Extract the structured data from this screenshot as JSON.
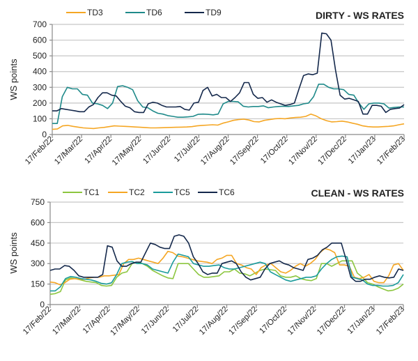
{
  "chart_data": [
    {
      "type": "line",
      "title": "DIRTY - WS RATES",
      "xlabel": "",
      "ylabel": "WS points",
      "ylim": [
        0,
        700
      ],
      "yticks": [
        0,
        100,
        200,
        300,
        400,
        500,
        600,
        700
      ],
      "grid": true,
      "legend_position": "top",
      "x_tick_labels": [
        "17/Feb/22",
        "17/Mar/22",
        "17/Apr/22",
        "17/May/22",
        "17/Jun/22",
        "17/Jul/22",
        "17/Aug/22",
        "17/Sep/22",
        "17/Oct/22",
        "17/Nov/22",
        "17/Dec/22",
        "17/Jan/23",
        "17/Feb/23"
      ],
      "x_unit": "weeks since 17/Feb/22",
      "series": [
        {
          "name": "TD3",
          "color": "#f5a623",
          "values": [
            33,
            35,
            55,
            58,
            52,
            47,
            42,
            40,
            38,
            42,
            45,
            50,
            55,
            53,
            52,
            50,
            48,
            46,
            44,
            42,
            42,
            43,
            44,
            45,
            46,
            47,
            48,
            50,
            55,
            58,
            60,
            62,
            60,
            72,
            80,
            90,
            95,
            98,
            92,
            82,
            80,
            90,
            95,
            100,
            102,
            100,
            105,
            108,
            110,
            115,
            130,
            118,
            100,
            88,
            80,
            82,
            85,
            80,
            72,
            65,
            55,
            50,
            48,
            48,
            50,
            52,
            55,
            62,
            68
          ]
        },
        {
          "name": "TD6",
          "color": "#1f8a8a",
          "values": [
            70,
            70,
            240,
            300,
            290,
            290,
            255,
            250,
            200,
            195,
            185,
            165,
            200,
            305,
            310,
            300,
            285,
            215,
            175,
            170,
            150,
            135,
            130,
            120,
            115,
            110,
            110,
            112,
            115,
            128,
            130,
            128,
            125,
            130,
            195,
            210,
            210,
            208,
            180,
            175,
            178,
            178,
            182,
            170,
            175,
            178,
            180,
            178,
            182,
            185,
            195,
            200,
            240,
            320,
            320,
            300,
            290,
            290,
            285,
            255,
            250,
            200,
            160,
            195,
            200,
            200,
            195,
            168,
            172,
            175,
            175
          ]
        },
        {
          "name": "TD9",
          "color": "#14284b",
          "values": [
            150,
            150,
            165,
            160,
            155,
            150,
            145,
            145,
            175,
            190,
            235,
            265,
            265,
            250,
            245,
            210,
            180,
            170,
            145,
            140,
            140,
            195,
            205,
            200,
            185,
            175,
            175,
            175,
            178,
            160,
            155,
            200,
            205,
            280,
            300,
            245,
            255,
            235,
            235,
            210,
            235,
            265,
            330,
            330,
            255,
            230,
            235,
            205,
            220,
            205,
            195,
            185,
            190,
            200,
            290,
            375,
            385,
            380,
            390,
            645,
            640,
            600,
            410,
            250,
            225,
            230,
            220,
            210,
            130,
            130,
            185,
            185,
            180,
            140,
            160,
            165,
            168,
            190
          ]
        }
      ]
    },
    {
      "type": "line",
      "title": "CLEAN - WS RATES",
      "xlabel": "",
      "ylabel": "WS points",
      "ylim": [
        0,
        750
      ],
      "yticks": [
        0,
        150,
        300,
        450,
        600,
        750
      ],
      "grid": true,
      "legend_position": "top",
      "x_tick_labels": [
        "17/Feb/22",
        "17/Mar/22",
        "17/Apr/22",
        "17/May/22",
        "17/Jun/22",
        "17/Jul/22",
        "17/Aug/22",
        "17/Sep/22",
        "17/Oct/22",
        "17/Nov/22",
        "17/Dec/22",
        "17/Jan/23",
        "17/Feb/23"
      ],
      "x_unit": "weeks since 17/Feb/22",
      "series": [
        {
          "name": "TC1",
          "color": "#8cc63f",
          "values": [
            75,
            80,
            95,
            180,
            195,
            190,
            180,
            170,
            165,
            160,
            140,
            135,
            140,
            200,
            230,
            240,
            300,
            310,
            300,
            280,
            250,
            230,
            210,
            195,
            190,
            300,
            300,
            300,
            260,
            220,
            200,
            200,
            205,
            210,
            240,
            240,
            260,
            230,
            225,
            210,
            230,
            250,
            260,
            255,
            250,
            210,
            200,
            200,
            210,
            190,
            180,
            175,
            190,
            300,
            300,
            280,
            300,
            320,
            320,
            320,
            230,
            200,
            160,
            150,
            130,
            115,
            100,
            105,
            120,
            150
          ]
        },
        {
          "name": "TC2",
          "color": "#f5a623",
          "values": [
            165,
            160,
            145,
            160,
            185,
            190,
            185,
            185,
            195,
            200,
            200,
            210,
            210,
            215,
            220,
            300,
            330,
            330,
            340,
            330,
            320,
            310,
            300,
            340,
            390,
            380,
            355,
            350,
            340,
            330,
            320,
            315,
            310,
            300,
            330,
            340,
            360,
            360,
            300,
            290,
            270,
            260,
            220,
            270,
            290,
            300,
            270,
            240,
            230,
            250,
            280,
            300,
            280,
            300,
            330,
            380,
            410,
            400,
            380,
            290,
            290,
            280,
            200,
            190,
            200,
            220,
            170,
            160,
            160,
            210,
            290,
            300,
            250
          ]
        },
        {
          "name": "TC5",
          "color": "#1a9b9b",
          "values": [
            100,
            100,
            130,
            190,
            205,
            200,
            190,
            185,
            180,
            170,
            155,
            150,
            160,
            220,
            300,
            310,
            315,
            300,
            300,
            290,
            260,
            250,
            240,
            230,
            310,
            370,
            360,
            350,
            300,
            290,
            280,
            280,
            285,
            290,
            270,
            260,
            260,
            270,
            280,
            290,
            300,
            310,
            300,
            240,
            220,
            200,
            180,
            170,
            180,
            190,
            200,
            200,
            210,
            260,
            300,
            330,
            350,
            355,
            350,
            200,
            190,
            180,
            150,
            140,
            140,
            135,
            135,
            140,
            160,
            220
          ]
        },
        {
          "name": "TC6",
          "color": "#14284b",
          "values": [
            250,
            260,
            260,
            285,
            280,
            250,
            210,
            200,
            200,
            200,
            200,
            220,
            430,
            420,
            320,
            280,
            280,
            300,
            310,
            310,
            380,
            450,
            440,
            420,
            410,
            410,
            500,
            510,
            500,
            450,
            350,
            300,
            240,
            220,
            230,
            230,
            300,
            310,
            320,
            300,
            240,
            200,
            180,
            190,
            200,
            260,
            300,
            310,
            320,
            300,
            290,
            270,
            260,
            250,
            330,
            340,
            360,
            400,
            420,
            450,
            450,
            450,
            330,
            200,
            170,
            170,
            185,
            185,
            200,
            210,
            200,
            195,
            200,
            260,
            250
          ]
        }
      ]
    }
  ]
}
